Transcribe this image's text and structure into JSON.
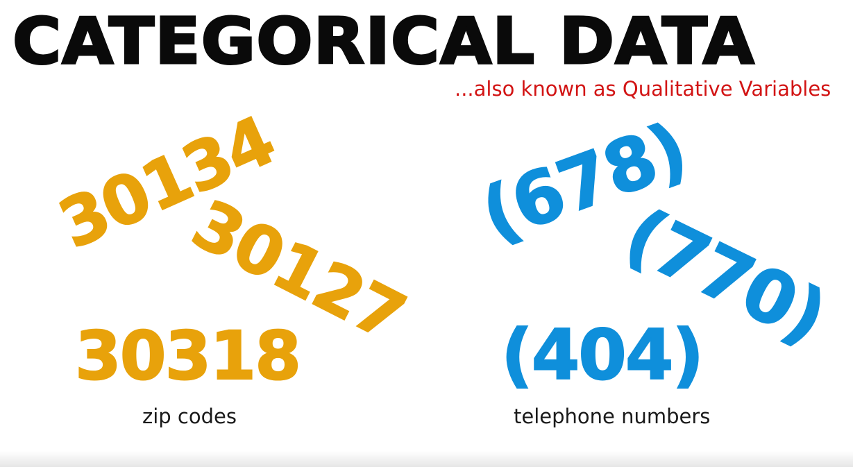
{
  "slide": {
    "title": "CATEGORICAL DATA",
    "subtitle": "...also known as Qualitative Variables"
  },
  "zip_codes": {
    "items": [
      "30134",
      "30127",
      "30318"
    ],
    "label": "zip codes",
    "color": "#e8a20b"
  },
  "telephone_numbers": {
    "items": [
      "(678)",
      "(770)",
      "(404)"
    ],
    "label": "telephone numbers",
    "color": "#0f8fdb"
  },
  "colors": {
    "title": "#0a0a0a",
    "subtitle": "#d21414",
    "background": "#ffffff"
  }
}
